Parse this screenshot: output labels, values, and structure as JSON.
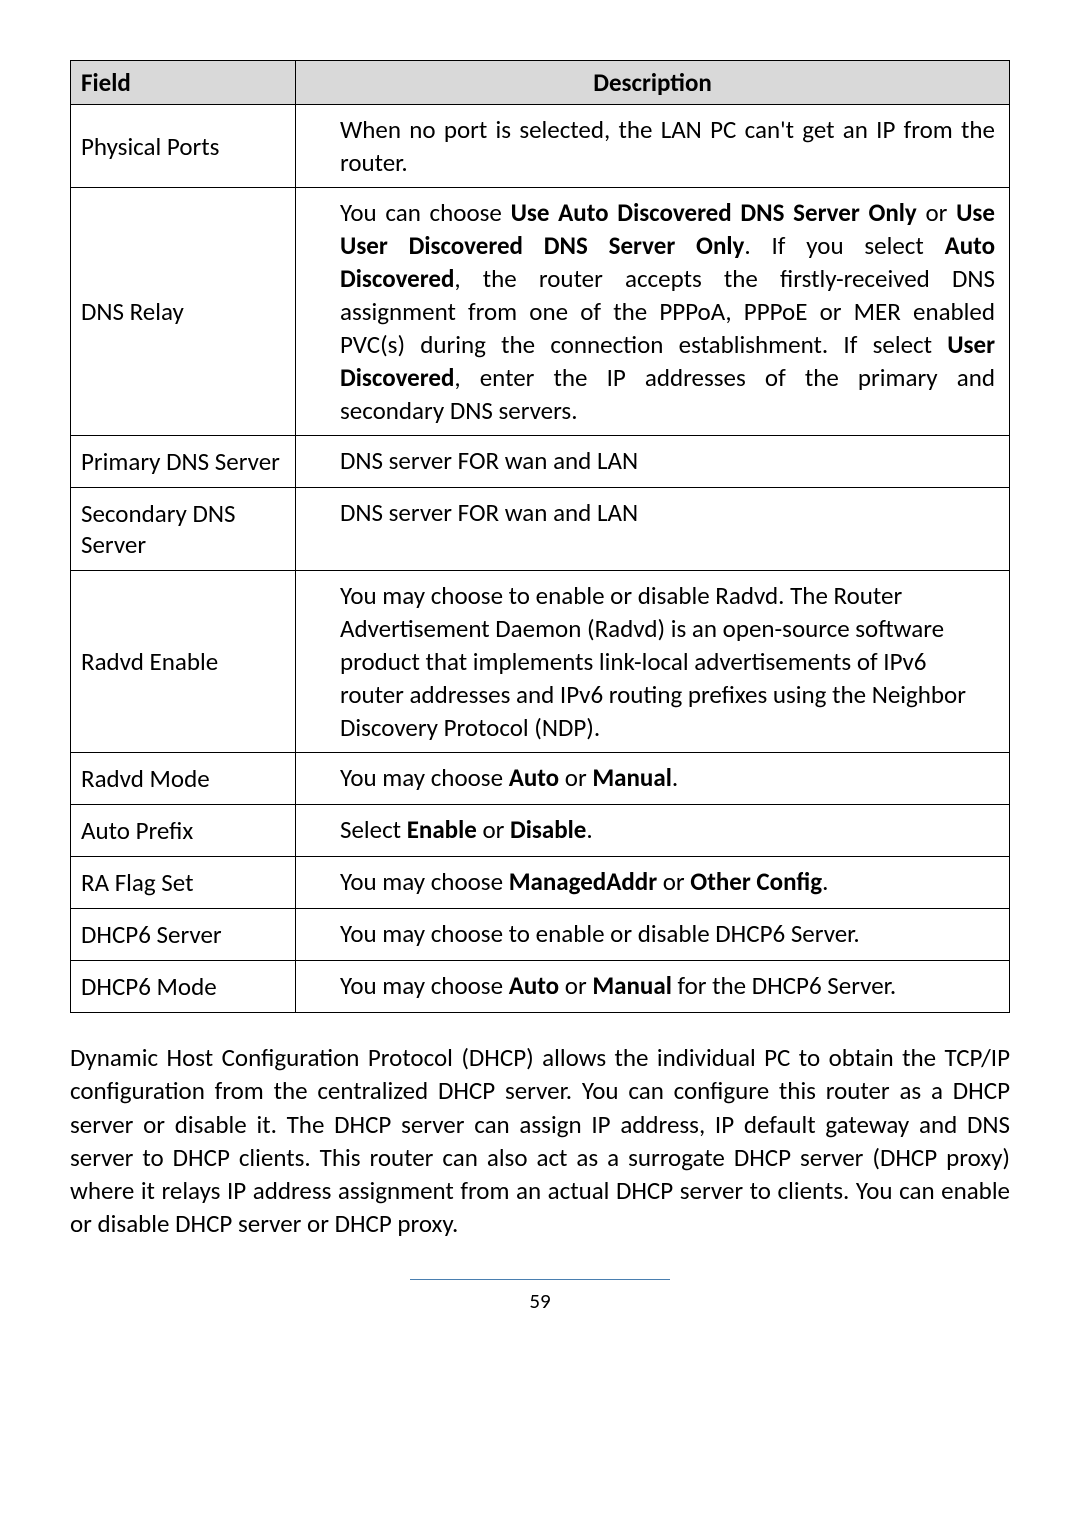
{
  "table": {
    "header_field": "Field",
    "header_desc": "Description",
    "rows": [
      {
        "field": "Physical Ports",
        "desc": "When no port is selected, the LAN PC can't get an IP from the router."
      },
      {
        "field": "DNS Relay",
        "desc_html": "You can choose <b>Use Auto Discovered DNS Server Only</b> or <b>Use User Discovered DNS Server Only</b>. If you select <b>Auto Discovered</b>, the router accepts the firstly-received DNS assignment from one of the PPPoA, PPPoE or MER enabled PVC(s) during the connection establishment. If select <b>User Discovered</b>, enter the IP addresses of the primary and secondary DNS servers."
      },
      {
        "field": "Primary DNS Server",
        "desc": "DNS server FOR wan and LAN"
      },
      {
        "field": "Secondary DNS Server",
        "desc": "DNS server FOR wan and LAN"
      },
      {
        "field": "Radvd Enable",
        "desc": "You may choose to enable or disable Radvd. The Router Advertisement Daemon (Radvd) is an open-source software product that implements link-local advertisements of IPv6 router addresses and IPv6 routing prefixes using the Neighbor Discovery Protocol (NDP)."
      },
      {
        "field": "Radvd Mode",
        "desc_html": "You may choose <b>Auto</b> or <b>Manual</b>."
      },
      {
        "field": "Auto Prefix",
        "desc_html": "Select <b>Enable</b> or <b>Disable</b>."
      },
      {
        "field": "RA Flag Set",
        "desc_html": "You may choose <b>ManagedAddr</b> or <b>Other Config</b>."
      },
      {
        "field": "DHCP6 Server",
        "desc": "You may choose to enable or disable DHCP6 Server."
      },
      {
        "field": "DHCP6 Mode",
        "desc_html": "You may choose <b>Auto</b> or <b>Manual</b> for the DHCP6 Server."
      }
    ]
  },
  "paragraph": "Dynamic Host Configuration Protocol (DHCP) allows the individual PC to obtain the TCP/IP configuration from the centralized DHCP server. You can configure this router as a DHCP server or disable it. The DHCP server can assign IP address, IP default gateway and DNS server to DHCP clients. This router can also act as a surrogate DHCP server (DHCP proxy) where it relays IP address assignment from an actual DHCP server to clients. You can enable or disable DHCP server or DHCP proxy.",
  "page_number": "59"
}
